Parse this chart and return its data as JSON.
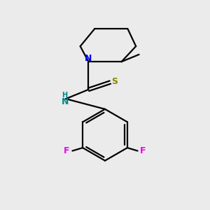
{
  "background_color": "#ebebeb",
  "bond_color": "#000000",
  "N_color": "#0000ee",
  "S_color": "#888800",
  "F_color": "#ee00ee",
  "NH_color": "#008888",
  "figsize": [
    3.0,
    3.0
  ],
  "dpi": 100,
  "xlim": [
    0,
    10
  ],
  "ylim": [
    0,
    10
  ]
}
